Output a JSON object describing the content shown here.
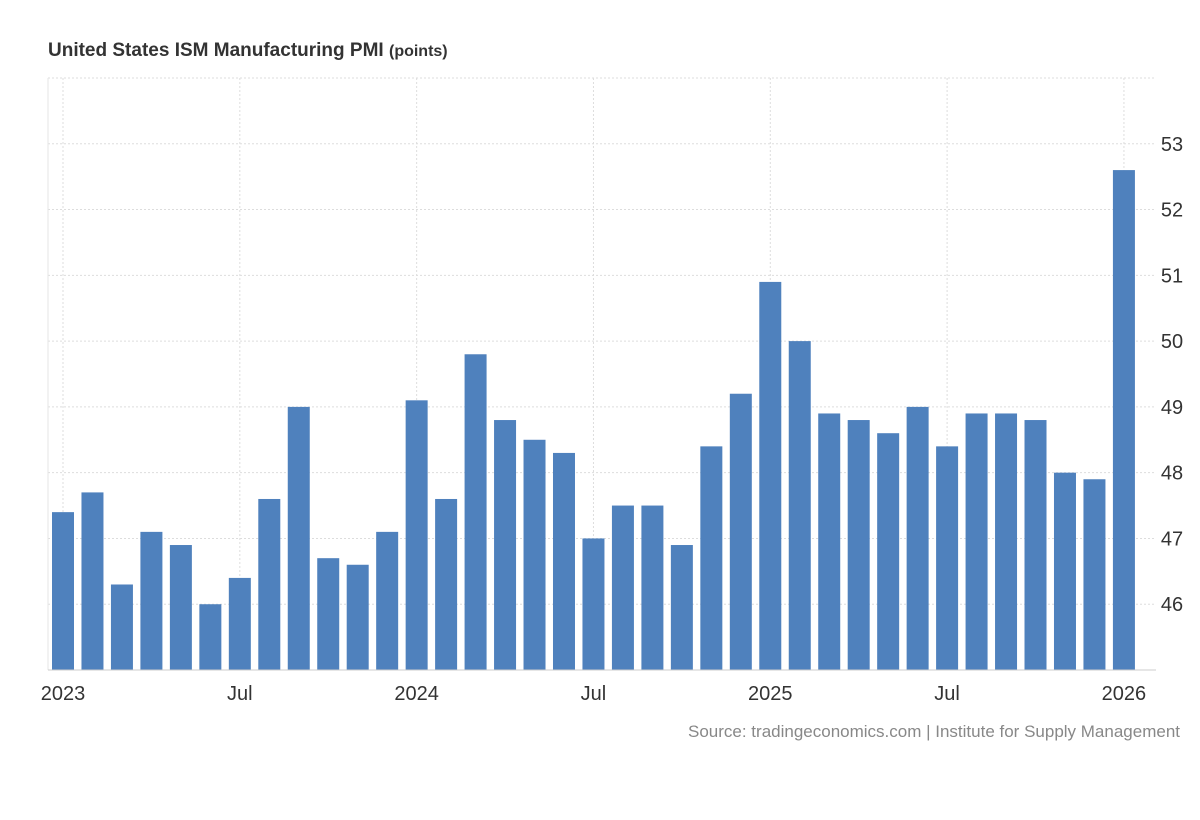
{
  "chart_data": {
    "type": "bar",
    "title": "United States ISM Manufacturing PMI",
    "unit": "(points)",
    "categories": [
      "2023-01",
      "2023-02",
      "2023-03",
      "2023-04",
      "2023-05",
      "2023-06",
      "2023-07",
      "2023-08",
      "2023-09",
      "2023-10",
      "2023-11",
      "2023-12",
      "2024-01",
      "2024-02",
      "2024-03",
      "2024-04",
      "2024-05",
      "2024-06",
      "2024-07",
      "2024-08",
      "2024-09",
      "2024-10",
      "2024-11",
      "2024-12",
      "2025-01",
      "2025-02",
      "2025-03",
      "2025-04",
      "2025-05",
      "2025-06",
      "2025-07",
      "2025-08",
      "2025-09",
      "2025-10",
      "2025-11",
      "2025-12",
      "2026-01"
    ],
    "values": [
      47.4,
      47.7,
      46.3,
      47.1,
      46.9,
      46.0,
      46.4,
      47.6,
      49.0,
      46.7,
      46.6,
      47.1,
      49.1,
      47.6,
      49.8,
      48.8,
      48.5,
      48.3,
      47.0,
      47.5,
      47.5,
      46.9,
      48.4,
      49.2,
      50.9,
      50.0,
      48.9,
      48.8,
      48.6,
      49.0,
      48.4,
      48.9,
      48.9,
      48.8,
      48.0,
      47.9,
      52.6
    ],
    "ylim": [
      45,
      54
    ],
    "yticks": [
      46,
      47,
      48,
      49,
      50,
      51,
      52,
      53
    ],
    "xticks": [
      {
        "index": 0,
        "label": "2023"
      },
      {
        "index": 6,
        "label": "Jul"
      },
      {
        "index": 12,
        "label": "2024"
      },
      {
        "index": 18,
        "label": "Jul"
      },
      {
        "index": 24,
        "label": "2025"
      },
      {
        "index": 30,
        "label": "Jul"
      },
      {
        "index": 36,
        "label": "2026"
      }
    ],
    "grid": true,
    "y_axis_side": "right",
    "bar_color": "#4f81bd",
    "source": "Source: tradingeconomics.com | Institute for Supply Management"
  }
}
